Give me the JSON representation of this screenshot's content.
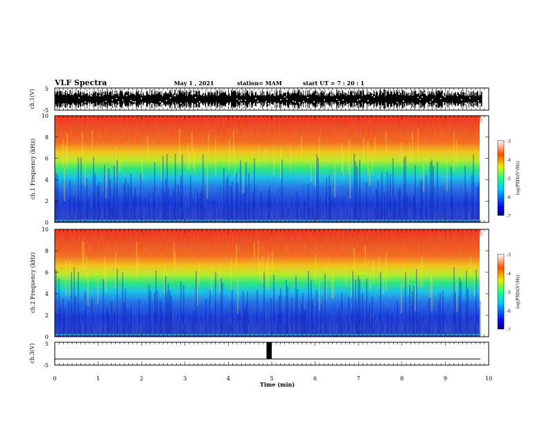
{
  "header": {
    "title": "VLF Spectra",
    "date": "May 1 , 2021",
    "station": "station= MAM",
    "start": "start UT = 7 : 20 : 1"
  },
  "chart_data": [
    {
      "type": "line",
      "name": "ch1-waveform",
      "ylabel": "ch.1(V)",
      "ylim": [
        -5,
        5
      ],
      "yticks": [
        "5",
        "-5"
      ],
      "xlim": [
        0,
        10
      ],
      "data_end_min": 9.85,
      "fill_color": "#000000"
    },
    {
      "type": "heatmap",
      "name": "ch1-spectrogram",
      "ylabel": "ch.1 Frequency (kHz)",
      "ylim": [
        0,
        10
      ],
      "yticks": [
        0,
        2,
        4,
        6,
        8,
        10
      ],
      "xlim": [
        0,
        10
      ],
      "data_end_min": 9.85,
      "colorbar": {
        "label": "log(PSD)(V²/Hz)",
        "range": [
          -7,
          -3
        ],
        "ticks": [
          -3,
          -4,
          -5,
          -6,
          -7
        ]
      }
    },
    {
      "type": "heatmap",
      "name": "ch2-spectrogram",
      "ylabel": "ch.2 Frequency (kHz)",
      "ylim": [
        0,
        10
      ],
      "yticks": [
        0,
        2,
        4,
        6,
        8,
        10
      ],
      "xlim": [
        0,
        10
      ],
      "data_end_min": 9.85,
      "colorbar": {
        "label": "log(PSD)(V²/Hz)",
        "range": [
          -7,
          -3
        ],
        "ticks": [
          -3,
          -4,
          -5,
          -6,
          -7
        ]
      }
    },
    {
      "type": "line",
      "name": "ch3-signal",
      "ylabel": "ch.3(V)",
      "ylim": [
        -5,
        5
      ],
      "yticks": [
        "5",
        "-5"
      ],
      "xlim": [
        0,
        10
      ],
      "baseline": -2.3,
      "pulse": {
        "start_min": 4.88,
        "end_min": 5.0,
        "high": 5
      }
    }
  ],
  "xaxis": {
    "label": "Time (min)",
    "ticks": [
      0,
      1,
      2,
      3,
      4,
      5,
      6,
      7,
      8,
      9,
      10
    ]
  }
}
